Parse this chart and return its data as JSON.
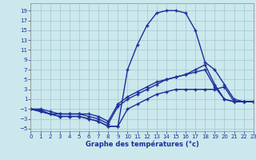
{
  "xlabel": "Graphe des températures (°c)",
  "xlim": [
    0,
    23
  ],
  "ylim": [
    -5.5,
    20.5
  ],
  "yticks": [
    -5,
    -3,
    -1,
    1,
    3,
    5,
    7,
    9,
    11,
    13,
    15,
    17,
    19
  ],
  "xticks": [
    0,
    1,
    2,
    3,
    4,
    5,
    6,
    7,
    8,
    9,
    10,
    11,
    12,
    13,
    14,
    15,
    16,
    17,
    18,
    19,
    20,
    21,
    22,
    23
  ],
  "bg_color": "#cce8ec",
  "grid_color": "#9fc8d0",
  "line_color": "#1a2e9a",
  "curve_top_x": [
    0,
    1,
    2,
    3,
    4,
    5,
    6,
    7,
    8,
    9,
    10,
    11,
    12,
    13,
    14,
    15,
    16,
    17,
    18,
    19,
    20,
    21,
    22,
    23
  ],
  "curve_top_y": [
    -1,
    -1.5,
    -2,
    -2.5,
    -2.5,
    -2.5,
    -3,
    -3.5,
    -4.5,
    -4.5,
    7,
    12,
    16,
    18.5,
    19,
    19,
    18.5,
    15,
    8.5,
    7,
    4,
    1,
    0.5,
    0.5
  ],
  "curve_mid1_x": [
    0,
    1,
    2,
    3,
    4,
    5,
    6,
    7,
    8,
    9,
    10,
    11,
    12,
    13,
    14,
    15,
    16,
    17,
    18,
    19,
    20,
    21,
    22,
    23
  ],
  "curve_mid1_y": [
    -1,
    -1.2,
    -2,
    -2,
    -2,
    -2,
    -2.5,
    -3,
    -4,
    -0.5,
    1,
    2,
    3,
    4,
    5,
    5.5,
    6,
    7,
    8,
    4,
    1,
    0.5,
    0.5,
    0.5
  ],
  "curve_mid2_x": [
    0,
    1,
    2,
    3,
    4,
    5,
    6,
    7,
    8,
    9,
    10,
    11,
    12,
    13,
    14,
    15,
    16,
    17,
    18,
    19,
    20,
    21,
    22,
    23
  ],
  "curve_mid2_y": [
    -1,
    -1,
    -1.5,
    -2,
    -2,
    -2,
    -2,
    -2.5,
    -3.5,
    0,
    1.5,
    2.5,
    3.5,
    4.5,
    5,
    5.5,
    6,
    6.5,
    7,
    3.5,
    1,
    0.5,
    0.5,
    0.5
  ],
  "curve_bot_x": [
    0,
    1,
    2,
    3,
    4,
    5,
    6,
    7,
    8,
    9,
    10,
    11,
    12,
    13,
    14,
    15,
    16,
    17,
    18,
    19,
    20,
    21,
    22,
    23
  ],
  "curve_bot_y": [
    -1,
    -1.5,
    -2,
    -2.5,
    -2.5,
    -2.5,
    -3,
    -3.5,
    -4.5,
    -4.5,
    -1,
    0,
    1,
    2,
    2.5,
    3,
    3,
    3,
    3,
    3,
    3.5,
    0.5,
    0.5,
    0.5
  ]
}
